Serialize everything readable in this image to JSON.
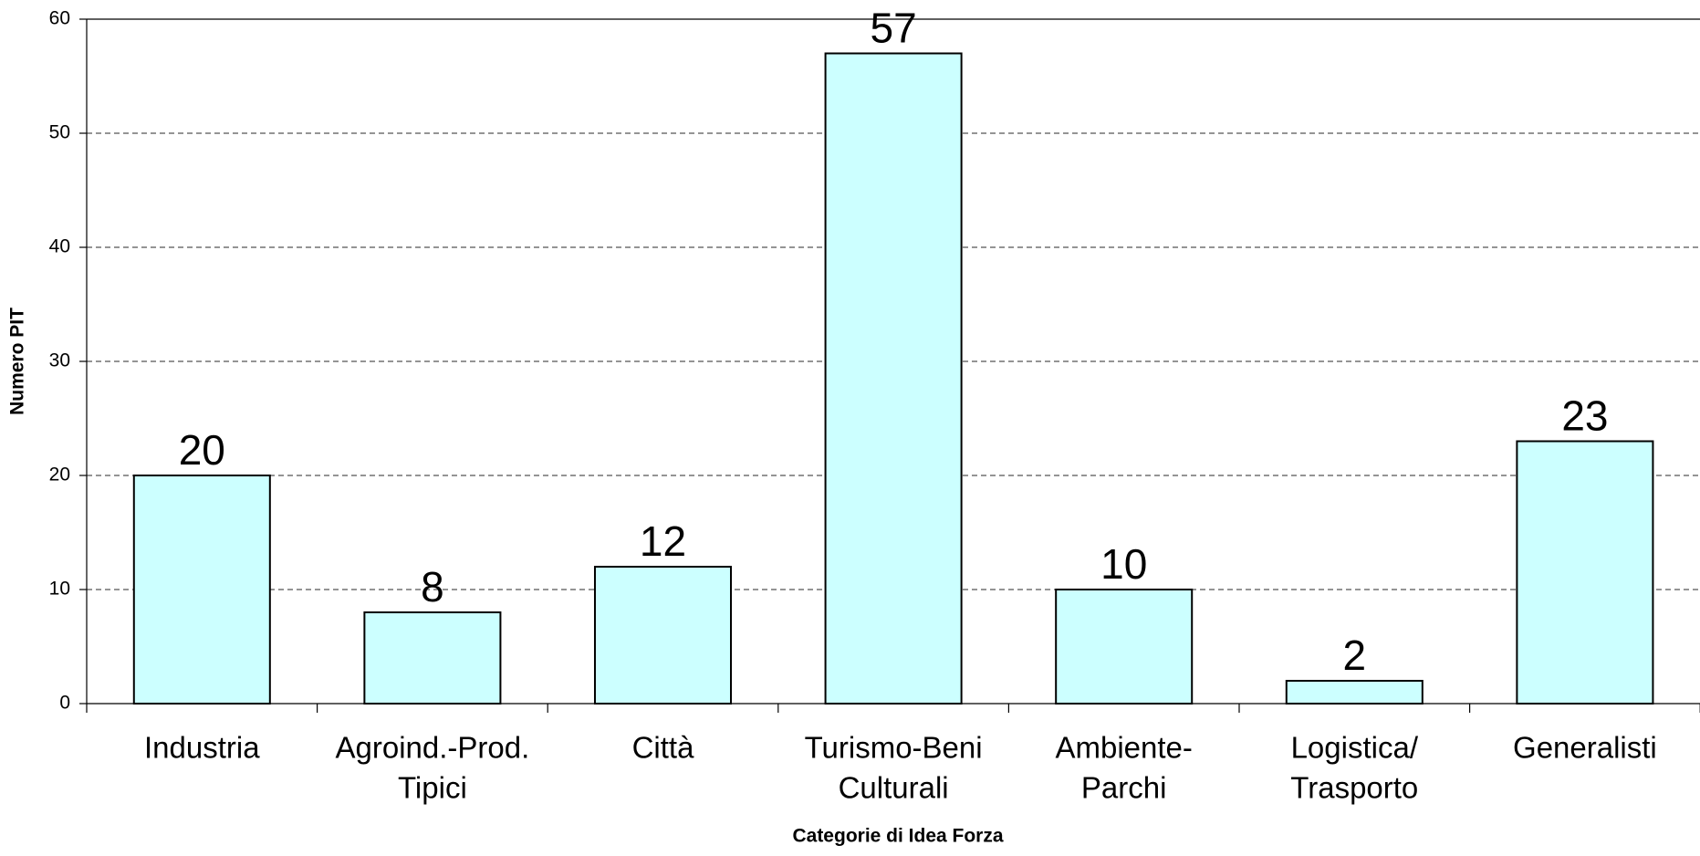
{
  "chart_data": {
    "type": "bar",
    "categories": [
      [
        "Industria"
      ],
      [
        "Agroind.-Prod.",
        "Tipici"
      ],
      [
        "Città"
      ],
      [
        "Turismo-Beni",
        "Culturali"
      ],
      [
        "Ambiente-",
        "Parchi"
      ],
      [
        "Logistica/",
        "Trasporto"
      ],
      [
        "Generalisti"
      ]
    ],
    "values": [
      20,
      8,
      12,
      57,
      10,
      2,
      23
    ],
    "color": "#ccffff",
    "x_label": "Categorie di Idea Forza",
    "y_label": "Numero PIT",
    "ylim": [
      0,
      60
    ],
    "yticks": [
      0,
      10,
      20,
      30,
      40,
      50,
      60
    ],
    "grid": true
  }
}
